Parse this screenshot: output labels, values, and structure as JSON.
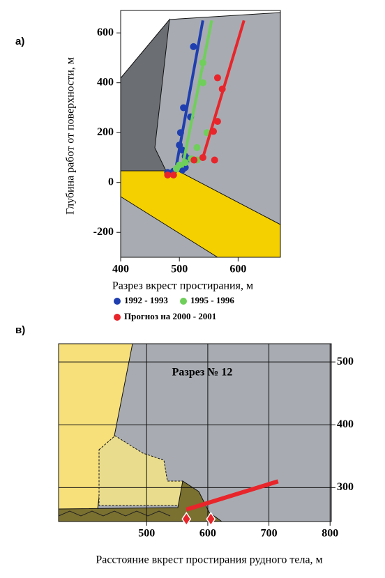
{
  "chart_data": [
    {
      "type": "scatter",
      "panel_label": "а)",
      "xlabel": "Разрез вкрест простирания, м",
      "ylabel": "Глубина работ от поверхности, м",
      "xlim": [
        400,
        672
      ],
      "ylim": [
        -300,
        690
      ],
      "xticks": [
        400,
        500,
        600
      ],
      "yticks": [
        -200,
        0,
        200,
        400,
        600
      ],
      "series": [
        {
          "name": "1992 - 1993",
          "color": "#1f3fb0",
          "x": [
            524,
            519,
            507,
            502,
            500,
            505,
            510,
            515,
            505,
            510,
            490,
            480
          ],
          "y": [
            545,
            263,
            300,
            200,
            150,
            130,
            105,
            95,
            50,
            60,
            45,
            40
          ],
          "trend_x": [
            495,
            540
          ],
          "trend_y": [
            70,
            650
          ]
        },
        {
          "name": "1995 - 1996",
          "color": "#6fcf5a",
          "x": [
            540,
            540,
            547,
            530,
            520,
            510,
            500,
            495,
            530
          ],
          "y": [
            480,
            400,
            200,
            140,
            95,
            80,
            70,
            55,
            90
          ],
          "trend_x": [
            505,
            555
          ],
          "trend_y": [
            60,
            650
          ]
        },
        {
          "name": "Прогноз на 2000 - 2001",
          "color": "#e8252a",
          "x": [
            565,
            573,
            565,
            558,
            540,
            525,
            560,
            490,
            480
          ],
          "y": [
            420,
            375,
            245,
            205,
            100,
            90,
            90,
            30,
            30
          ],
          "trend_x": [
            540,
            610
          ],
          "trend_y": [
            100,
            650
          ]
        }
      ]
    },
    {
      "type": "line",
      "panel_label": "в)",
      "title": "Разрез № 12",
      "xlabel": "Расстояние вкрест простирания рудного тела, м",
      "xlim": [
        356,
        802
      ],
      "ylim": [
        246,
        529
      ],
      "xticks": [
        500,
        600,
        700,
        800
      ],
      "yticks": [
        300,
        400,
        500
      ],
      "grid": true,
      "series": [
        {
          "color": "#e8252a",
          "x": [
            565,
            715
          ],
          "values": [
            265,
            310
          ]
        }
      ],
      "markers": {
        "color": "#e8252a",
        "x": [
          565,
          605
        ],
        "values": [
          250,
          250
        ]
      }
    }
  ]
}
